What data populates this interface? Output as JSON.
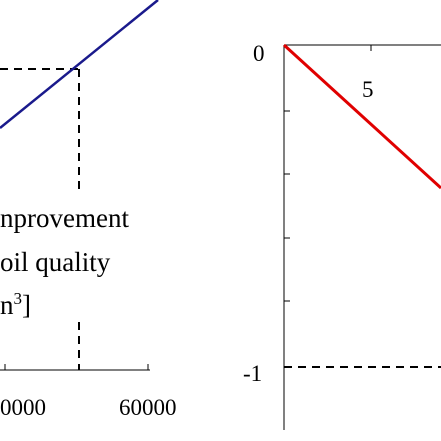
{
  "chart_data": [
    {
      "type": "line",
      "title": "",
      "xlabel": "",
      "ylabel": "",
      "x_tick_labels": [
        "0000",
        "60000"
      ],
      "annotation_lines": [
        "nprovement",
        "oil quality",
        "n3]"
      ],
      "series": [
        {
          "color": "#1a1a8c",
          "x": [
            20000,
            56000
          ],
          "y": [
            0.35,
            1.0
          ]
        }
      ],
      "reference_lines": {
        "x": 46000,
        "y": 0.9
      },
      "xlim": [
        0,
        70000
      ],
      "grid": false
    },
    {
      "type": "line",
      "title": "",
      "xlabel": "",
      "ylabel": "",
      "y_tick_labels": [
        "0",
        "-1"
      ],
      "x_tick_labels": [
        "5"
      ],
      "series": [
        {
          "color": "#e00000",
          "x": [
            0,
            12.3
          ],
          "y": [
            0,
            -0.44
          ]
        }
      ],
      "reference_lines": {
        "y": -1
      },
      "ylim": [
        -1.2,
        0
      ],
      "grid": false
    }
  ]
}
